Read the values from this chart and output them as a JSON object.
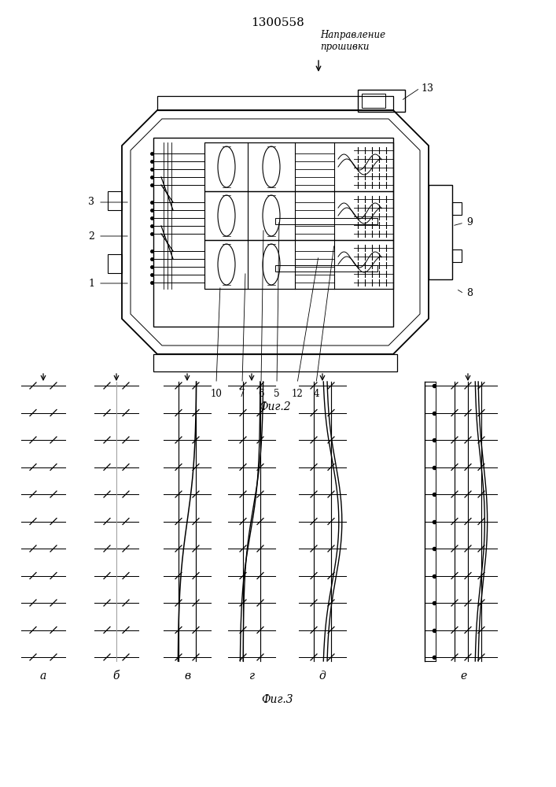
{
  "title": "1300558",
  "fig2_label": "Фиг.2",
  "fig3_label": "Фиг.3",
  "direction_label": "Направление\nпрошивки",
  "sublabels": [
    "а",
    "б",
    "в",
    "г",
    "д",
    "е"
  ],
  "bg_color": "#ffffff",
  "lc": "#000000"
}
